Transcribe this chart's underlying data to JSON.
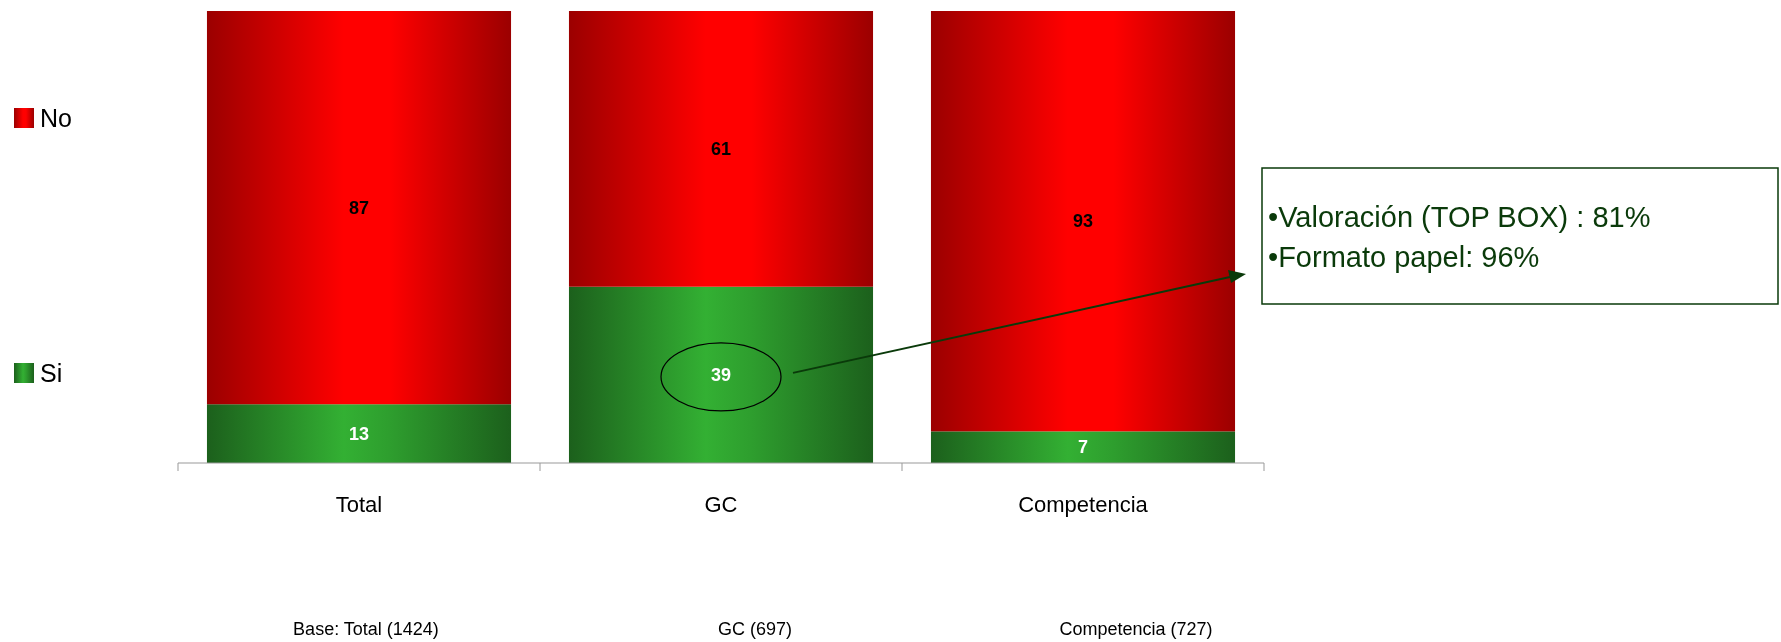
{
  "chart_data": {
    "type": "bar",
    "stacked": true,
    "categories": [
      "Total",
      "GC",
      "Competencia"
    ],
    "series": [
      {
        "name": "Si",
        "color": "#2e9e2e",
        "values": [
          13,
          39,
          7
        ]
      },
      {
        "name": "No",
        "color": "#ff0000",
        "values": [
          87,
          61,
          93
        ]
      }
    ],
    "data_labels": true,
    "legend": "left",
    "annotations": [
      "•Valoración (TOP BOX) : 81%",
      "•Formato papel: 96%",
      "Base: Total (1424)",
      "GC (697)",
      "Competencia (727)"
    ]
  }
}
